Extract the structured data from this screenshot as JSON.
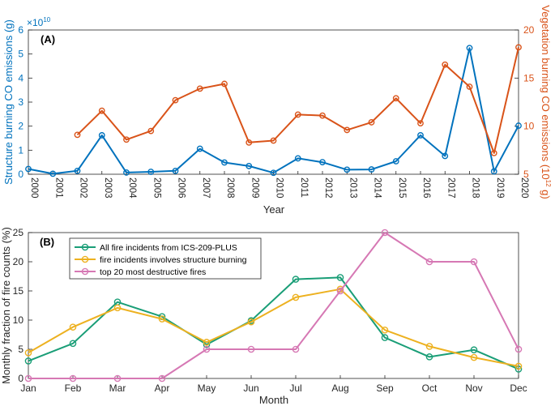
{
  "colors": {
    "blue": "#0072BD",
    "orange": "#D95319",
    "green": "#1A9E77",
    "yellow": "#EDB120",
    "pink": "#D678B4",
    "axis": "#262626"
  },
  "chart_data": [
    {
      "id": "A",
      "type": "line",
      "panel_label": "(A)",
      "xlabel": "Year",
      "x": [
        2000,
        2001,
        2002,
        2003,
        2004,
        2005,
        2006,
        2007,
        2008,
        2009,
        2010,
        2011,
        2012,
        2013,
        2014,
        2015,
        2016,
        2017,
        2018,
        2019,
        2020
      ],
      "xlim": [
        2000,
        2020
      ],
      "left_axis": {
        "label": "Structure burning CO emissions (g)",
        "exponent_label": "×10",
        "exponent_power": "10",
        "ylim": [
          0,
          6
        ],
        "ticks": [
          0,
          1,
          2,
          3,
          4,
          5,
          6
        ]
      },
      "right_axis": {
        "label_main": "Vegetation burning CO emissions (10",
        "label_power": "12",
        "label_unit": " g)",
        "ylim": [
          5,
          20
        ],
        "ticks": [
          5,
          10,
          15,
          20
        ]
      },
      "series": [
        {
          "name": "Structure burning CO emissions",
          "axis": "left",
          "color": "#0072BD",
          "x": [
            2000,
            2001,
            2002,
            2003,
            2004,
            2005,
            2006,
            2007,
            2008,
            2009,
            2010,
            2011,
            2012,
            2013,
            2014,
            2015,
            2016,
            2017,
            2018,
            2019,
            2020
          ],
          "values": [
            0.22,
            0.02,
            0.14,
            1.62,
            0.07,
            0.1,
            0.14,
            1.06,
            0.49,
            0.34,
            0.06,
            0.66,
            0.5,
            0.19,
            0.2,
            0.54,
            1.62,
            0.76,
            5.25,
            0.12,
            2.02
          ]
        },
        {
          "name": "Vegetation burning CO emissions",
          "axis": "right",
          "color": "#D95319",
          "x": [
            2002,
            2003,
            2004,
            2005,
            2006,
            2007,
            2008,
            2009,
            2010,
            2011,
            2012,
            2013,
            2014,
            2015,
            2016,
            2017,
            2018,
            2019,
            2020
          ],
          "values": [
            9.1,
            11.6,
            8.6,
            9.5,
            12.7,
            13.9,
            14.4,
            8.3,
            8.5,
            11.2,
            11.1,
            9.6,
            10.4,
            12.9,
            10.3,
            16.4,
            14.1,
            7.2,
            18.2
          ]
        }
      ]
    },
    {
      "id": "B",
      "type": "line",
      "panel_label": "(B)",
      "xlabel": "Month",
      "ylabel": "Monthly fraction of fire counts (%)",
      "categories": [
        "Jan",
        "Feb",
        "Mar",
        "Apr",
        "May",
        "Jun",
        "Jul",
        "Aug",
        "Sep",
        "Oct",
        "Nov",
        "Dec"
      ],
      "ylim": [
        0,
        25
      ],
      "ticks": [
        0,
        5,
        10,
        15,
        20,
        25
      ],
      "legend_position": "top-left",
      "series": [
        {
          "name": "All fire incidents from ICS-209-PLUS",
          "color": "#1A9E77",
          "values": [
            3.0,
            6.0,
            13.1,
            10.6,
            5.8,
            9.9,
            17.0,
            17.3,
            7.0,
            3.7,
            4.9,
            1.6
          ]
        },
        {
          "name": "fire incidents involves structure burning",
          "color": "#EDB120",
          "values": [
            4.4,
            8.8,
            12.1,
            10.2,
            6.2,
            9.7,
            13.9,
            15.3,
            8.3,
            5.5,
            3.6,
            2.1
          ]
        },
        {
          "name": "top 20 most destructive fires",
          "color": "#D678B4",
          "values": [
            0,
            0,
            0,
            0,
            5,
            5,
            5,
            15,
            25,
            20,
            20,
            5
          ]
        }
      ]
    }
  ]
}
